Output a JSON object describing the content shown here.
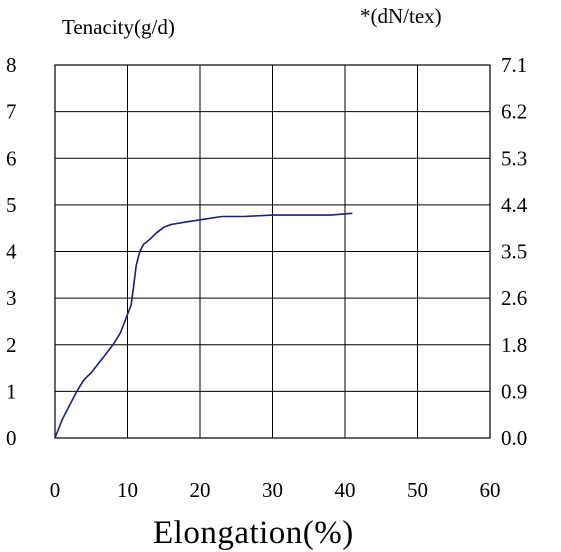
{
  "chart_data": {
    "type": "line",
    "left_axis_label": "Tenacity(g/d)",
    "right_axis_label": "*(dN/tex)",
    "xlabel": "Elongation(%)",
    "xlim": [
      0,
      60
    ],
    "ylim": [
      0,
      8
    ],
    "x_ticks": [
      "0",
      "10",
      "20",
      "30",
      "40",
      "50",
      "60"
    ],
    "y_ticks_left": [
      "0",
      "1",
      "2",
      "3",
      "4",
      "5",
      "6",
      "7",
      "8"
    ],
    "y_ticks_right": [
      "0.0",
      "0.9",
      "1.8",
      "2.6",
      "3.5",
      "4.4",
      "5.3",
      "6.2",
      "7.1"
    ],
    "grid": true,
    "series": [
      {
        "color": "#1a1f7a",
        "x": [
          0,
          1,
          2,
          3,
          4,
          5,
          6,
          7,
          8,
          9,
          10,
          10.5,
          10.8,
          11.2,
          11.7,
          12.2,
          13,
          14,
          15,
          16,
          18,
          20,
          23,
          26,
          30,
          34,
          38,
          41
        ],
        "y": [
          0,
          0.4,
          0.7,
          1.0,
          1.25,
          1.4,
          1.6,
          1.8,
          2.0,
          2.25,
          2.65,
          2.85,
          3.2,
          3.7,
          4.0,
          4.15,
          4.25,
          4.4,
          4.52,
          4.58,
          4.63,
          4.68,
          4.75,
          4.75,
          4.78,
          4.78,
          4.78,
          4.82
        ]
      }
    ]
  }
}
